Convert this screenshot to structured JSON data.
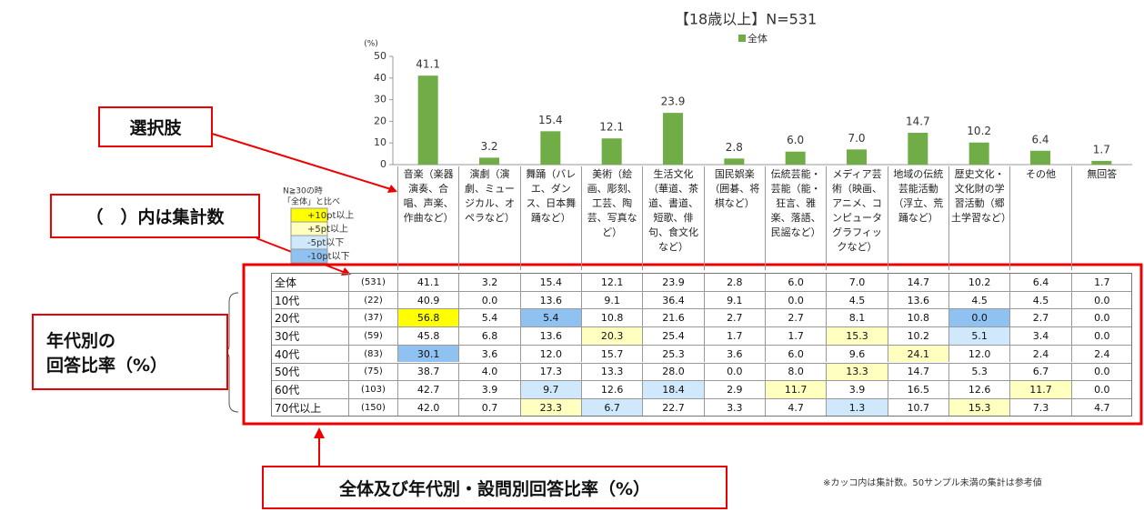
{
  "chart_data": {
    "type": "bar",
    "title": "【18歳以上】N=531",
    "legend": "全体",
    "unit": "(%)",
    "color": "#70ad47",
    "categories": [
      "音楽（楽器演奏、合唱、声楽、作曲など）",
      "演劇（演劇、ミュージカル、オペラなど）",
      "舞踊（バレエ、ダンス、日本舞踊など）",
      "美術（絵画、彫刻、工芸、陶芸、写真など）",
      "生活文化（華道、茶道、書道、短歌、俳句、食文化など）",
      "国民娯楽（囲碁、将棋など）",
      "伝統芸能・芸能（能・狂言、雅楽、落語、民謡など）",
      "メディア芸術（映画、アニメ、コンピュータグラフィックなど）",
      "地域の伝統芸能活動（浮立、荒踊など）",
      "歴史文化・文化財の学習活動（郷土学習など）",
      "その他",
      "無回答"
    ],
    "values": [
      41.1,
      3.2,
      15.4,
      12.1,
      23.9,
      2.8,
      6.0,
      7.0,
      14.7,
      10.2,
      6.4,
      1.7
    ],
    "value_labels": [
      "41.1",
      "3.2",
      "15.4",
      "12.1",
      "23.9",
      "2.8",
      "6.0",
      "7.0",
      "14.7",
      "10.2",
      "6.4",
      "1.7"
    ],
    "ylim": [
      0,
      50
    ],
    "yticks": [
      0,
      10,
      20,
      30,
      40,
      50
    ],
    "grid": false
  },
  "table": {
    "rows": [
      {
        "label": "全体",
        "n": "(531)",
        "values": [
          "41.1",
          "3.2",
          "15.4",
          "12.1",
          "23.9",
          "2.8",
          "6.0",
          "7.0",
          "14.7",
          "10.2",
          "6.4",
          "1.7"
        ]
      },
      {
        "label": "10代",
        "n": "(22)",
        "values": [
          "40.9",
          "0.0",
          "13.6",
          "9.1",
          "36.4",
          "9.1",
          "0.0",
          "4.5",
          "13.6",
          "4.5",
          "4.5",
          "0.0"
        ]
      },
      {
        "label": "20代",
        "n": "(37)",
        "values": [
          "56.8",
          "5.4",
          "5.4",
          "10.8",
          "21.6",
          "2.7",
          "2.7",
          "8.1",
          "10.8",
          "0.0",
          "2.7",
          "0.0"
        ]
      },
      {
        "label": "30代",
        "n": "(59)",
        "values": [
          "45.8",
          "6.8",
          "13.6",
          "20.3",
          "25.4",
          "1.7",
          "1.7",
          "15.3",
          "10.2",
          "5.1",
          "3.4",
          "0.0"
        ]
      },
      {
        "label": "40代",
        "n": "(83)",
        "values": [
          "30.1",
          "3.6",
          "12.0",
          "15.7",
          "25.3",
          "3.6",
          "6.0",
          "9.6",
          "24.1",
          "12.0",
          "2.4",
          "2.4"
        ]
      },
      {
        "label": "50代",
        "n": "(75)",
        "values": [
          "38.7",
          "4.0",
          "17.3",
          "13.3",
          "28.0",
          "0.0",
          "8.0",
          "13.3",
          "14.7",
          "5.3",
          "6.7",
          "0.0"
        ]
      },
      {
        "label": "60代",
        "n": "(103)",
        "values": [
          "42.7",
          "3.9",
          "9.7",
          "12.6",
          "18.4",
          "2.9",
          "11.7",
          "3.9",
          "16.5",
          "12.6",
          "11.7",
          "0.0"
        ]
      },
      {
        "label": "70代以上",
        "n": "(150)",
        "values": [
          "42.0",
          "0.7",
          "23.3",
          "6.7",
          "22.7",
          "3.3",
          "4.7",
          "1.3",
          "10.7",
          "15.3",
          "7.3",
          "4.7"
        ]
      }
    ]
  },
  "highlight": {
    "title_lines": [
      "N≧30の時",
      "「全体」と比べ"
    ],
    "min_n": 30,
    "levels": [
      {
        "label": "+10pt以上",
        "min": 10,
        "color": "#ffff00"
      },
      {
        "label": "+5pt以上",
        "min": 5,
        "color": "#ffffc0"
      },
      {
        "label": "-5pt以下",
        "max": -5,
        "color": "#cfe8fb"
      },
      {
        "label": "-10pt以下",
        "max": -10,
        "color": "#8fc1f1"
      }
    ]
  },
  "annotations": {
    "choices": "選択肢",
    "count_note": "（　）内は集計数",
    "age_note": [
      "年代別の",
      "回答比率（%）"
    ],
    "table_note": "全体及び年代別・設問別回答比率（%）",
    "footnote": "※カッコ内は集計数。50サンプル未満の集計は参考値"
  }
}
